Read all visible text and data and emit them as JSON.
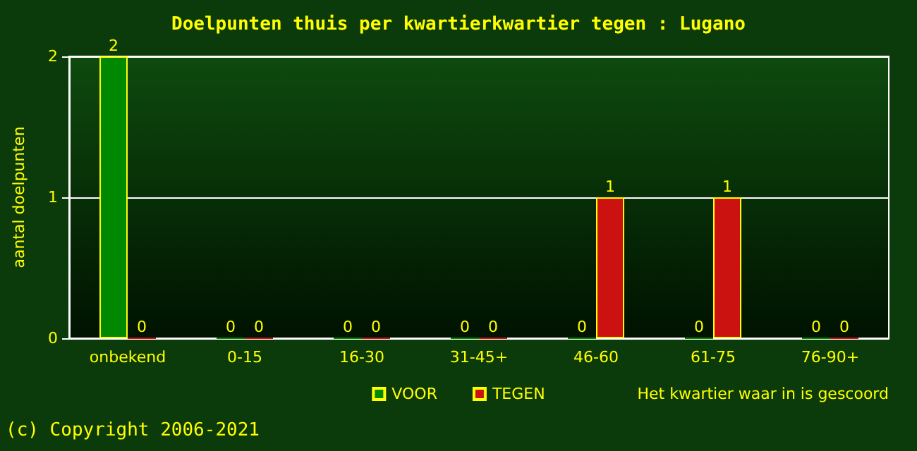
{
  "chart_data": {
    "type": "bar",
    "title": "Doelpunten thuis per kwartierkwartier tegen : Lugano",
    "xlabel": "Het kwartier waar in is gescoord",
    "ylabel": "aantal doelpunten",
    "categories": [
      "onbekend",
      "0-15",
      "16-30",
      "31-45+",
      "46-60",
      "61-75",
      "76-90+"
    ],
    "series": [
      {
        "name": "VOOR",
        "color": "#008800",
        "values": [
          2,
          0,
          0,
          0,
          0,
          0,
          0
        ]
      },
      {
        "name": "TEGEN",
        "color": "#cc1111",
        "values": [
          0,
          0,
          0,
          0,
          1,
          1,
          0
        ]
      }
    ],
    "ylim": [
      0,
      2
    ],
    "yticks": [
      0,
      1,
      2
    ],
    "grid": "y",
    "legend": "bottom",
    "data_labels": true,
    "annotations": [
      "(c) Copyright 2006-2021"
    ]
  }
}
